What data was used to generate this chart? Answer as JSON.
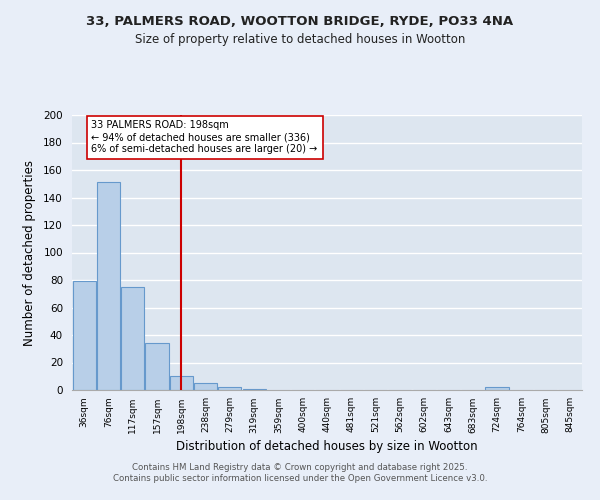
{
  "title1": "33, PALMERS ROAD, WOOTTON BRIDGE, RYDE, PO33 4NA",
  "title2": "Size of property relative to detached houses in Wootton",
  "xlabel": "Distribution of detached houses by size in Wootton",
  "ylabel": "Number of detached properties",
  "categories": [
    "36sqm",
    "76sqm",
    "117sqm",
    "157sqm",
    "198sqm",
    "238sqm",
    "279sqm",
    "319sqm",
    "359sqm",
    "400sqm",
    "440sqm",
    "481sqm",
    "521sqm",
    "562sqm",
    "602sqm",
    "643sqm",
    "683sqm",
    "724sqm",
    "764sqm",
    "805sqm",
    "845sqm"
  ],
  "values": [
    79,
    151,
    75,
    34,
    10,
    5,
    2,
    1,
    0,
    0,
    0,
    0,
    0,
    0,
    0,
    0,
    0,
    2,
    0,
    0,
    0
  ],
  "bar_color": "#b8cfe8",
  "bar_edge_color": "#6699cc",
  "vline_x": 4,
  "vline_color": "#cc0000",
  "annotation_text": "33 PALMERS ROAD: 198sqm\n← 94% of detached houses are smaller (336)\n6% of semi-detached houses are larger (20) →",
  "annotation_box_color": "#ffffff",
  "annotation_box_edge": "#cc0000",
  "annotation_fontsize": 7.0,
  "background_color": "#dde6f0",
  "fig_background_color": "#e8eef8",
  "ylim": [
    0,
    200
  ],
  "yticks": [
    0,
    20,
    40,
    60,
    80,
    100,
    120,
    140,
    160,
    180,
    200
  ],
  "title_fontsize": 9.5,
  "subtitle_fontsize": 8.5,
  "xlabel_fontsize": 8.5,
  "ylabel_fontsize": 8.5,
  "footnote1": "Contains HM Land Registry data © Crown copyright and database right 2025.",
  "footnote2": "Contains public sector information licensed under the Open Government Licence v3.0."
}
